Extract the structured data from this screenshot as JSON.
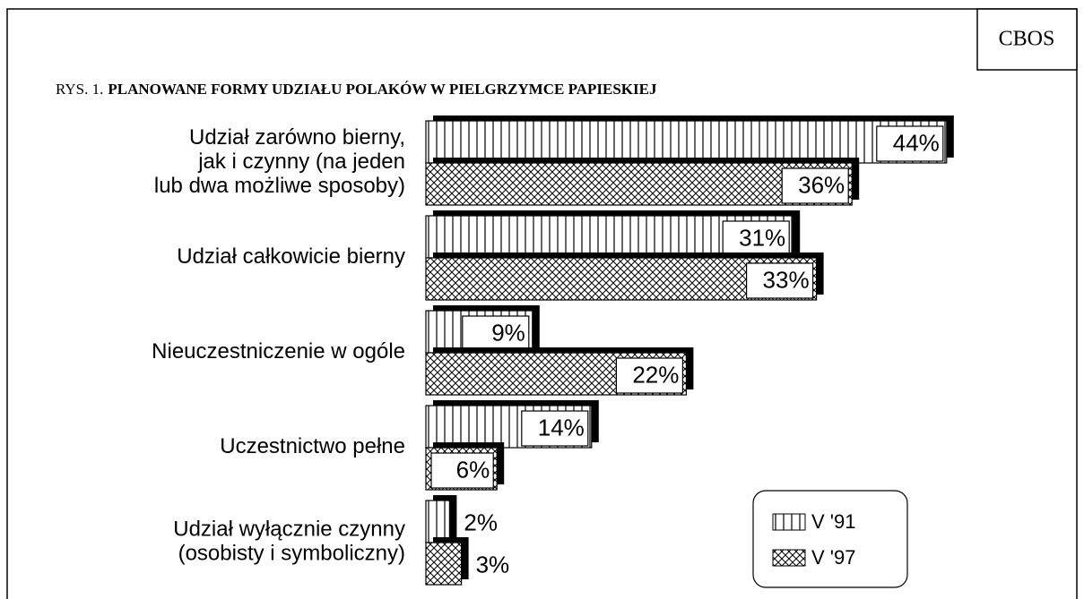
{
  "chart_data": {
    "type": "hbar",
    "source": "CBOS",
    "figure_label": "RYS. 1.",
    "title": "PLANOWANE FORMY UDZIAŁU POLAKÓW W PIELGRZYMCE PAPIESKIEJ",
    "categories": [
      "Udział zarówno bierny,\njak i czynny (na jeden\nlub dwa możliwe sposoby)",
      "Udział całkowicie bierny",
      "Nieuczestniczenie w ogóle",
      "Uczestnictwo pełne",
      "Udział wyłącznie czynny\n(osobisty i symboliczny)"
    ],
    "series": [
      {
        "name": "V '91",
        "color": "#000000",
        "pattern": "vertical",
        "values": [
          44,
          31,
          9,
          14,
          2
        ],
        "value_labels": [
          "44%",
          "31%",
          "9%",
          "14%",
          "2%"
        ]
      },
      {
        "name": "V '97",
        "color": "#000000",
        "pattern": "crosshatch",
        "values": [
          36,
          33,
          22,
          6,
          3
        ],
        "value_labels": [
          "36%",
          "33%",
          "22%",
          "6%",
          "3%"
        ]
      }
    ],
    "legend": "bottom-right"
  }
}
